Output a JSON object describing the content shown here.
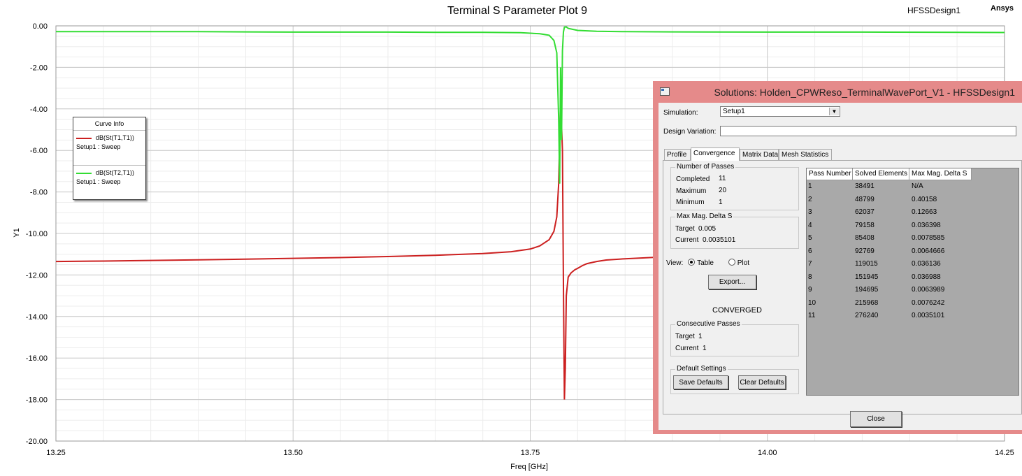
{
  "window": {
    "plot_title": "Terminal S Parameter Plot 9",
    "design_name": "HFSSDesign1",
    "brand": "Ansys"
  },
  "chart_data": {
    "type": "line",
    "title": "Terminal S Parameter Plot 9",
    "xlabel": "Freq [GHz]",
    "ylabel": "Y1",
    "xlim": [
      13.25,
      14.25
    ],
    "ylim": [
      -20,
      0
    ],
    "grid": true,
    "x_ticks": [
      "13.25",
      "13.50",
      "13.75",
      "14.00",
      "14.25"
    ],
    "x_tick_values": [
      13.25,
      13.5,
      13.75,
      14.0,
      14.25
    ],
    "y_ticks": [
      "0.00",
      "-2.00",
      "-4.00",
      "-6.00",
      "-8.00",
      "-10.00",
      "-12.00",
      "-14.00",
      "-16.00",
      "-18.00",
      "-20.00"
    ],
    "y_tick_values": [
      0,
      -2,
      -4,
      -6,
      -8,
      -10,
      -12,
      -14,
      -16,
      -18,
      -20
    ],
    "series": [
      {
        "name": "dB(St(T1,T1))",
        "legend_sub": "Setup1 : Sweep",
        "color": "#cc2020",
        "x": [
          13.25,
          13.3,
          13.35,
          13.4,
          13.45,
          13.5,
          13.55,
          13.6,
          13.65,
          13.7,
          13.73,
          13.75,
          13.76,
          13.77,
          13.775,
          13.778,
          13.78,
          13.782,
          13.784,
          13.785,
          13.786,
          13.787,
          13.788,
          13.79,
          13.793,
          13.797,
          13.8,
          13.805,
          13.81,
          13.82,
          13.83,
          13.85,
          13.88
        ],
        "y": [
          -11.35,
          -11.33,
          -11.3,
          -11.27,
          -11.24,
          -11.2,
          -11.16,
          -11.11,
          -11.05,
          -10.97,
          -10.88,
          -10.75,
          -10.6,
          -10.3,
          -9.9,
          -9.2,
          -7.6,
          -3.5,
          -6.0,
          -12.5,
          -18.0,
          -16.5,
          -13.0,
          -12.1,
          -11.9,
          -11.75,
          -11.68,
          -11.55,
          -11.45,
          -11.35,
          -11.28,
          -11.22,
          -11.15
        ]
      },
      {
        "name": "dB(St(T2,T1))",
        "legend_sub": "Setup1 : Sweep",
        "color": "#33dd33",
        "x": [
          13.25,
          13.3,
          13.35,
          13.4,
          13.45,
          13.5,
          13.55,
          13.6,
          13.65,
          13.7,
          13.74,
          13.76,
          13.77,
          13.775,
          13.778,
          13.78,
          13.781,
          13.782,
          13.783,
          13.784,
          13.785,
          13.786,
          13.788,
          13.79,
          13.8,
          13.82,
          13.85,
          13.9,
          14.0,
          14.1,
          14.2,
          14.25
        ],
        "y": [
          -0.28,
          -0.28,
          -0.28,
          -0.28,
          -0.29,
          -0.3,
          -0.3,
          -0.3,
          -0.31,
          -0.31,
          -0.33,
          -0.38,
          -0.45,
          -0.7,
          -1.3,
          -4.5,
          -7.6,
          -2.0,
          -5.5,
          -1.2,
          -0.3,
          -0.06,
          -0.05,
          -0.12,
          -0.22,
          -0.26,
          -0.28,
          -0.29,
          -0.3,
          -0.3,
          -0.31,
          -0.32
        ]
      }
    ]
  },
  "legend": {
    "title": "Curve Info",
    "entries": [
      {
        "name": "dB(St(T1,T1))",
        "sub": "Setup1 : Sweep",
        "color": "#cc2020"
      },
      {
        "name": "dB(St(T2,T1))",
        "sub": "Setup1 : Sweep",
        "color": "#33dd33"
      }
    ]
  },
  "dialog": {
    "title": "Solutions: Holden_CPWReso_TerminalWavePort_V1 - HFSSDesign1",
    "simulation_label": "Simulation:",
    "simulation_value": "Setup1",
    "design_variation_label": "Design Variation:",
    "design_variation_value": "",
    "tabs": [
      "Profile",
      "Convergence",
      "Matrix Data",
      "Mesh Statistics"
    ],
    "active_tab": "Convergence",
    "passes": {
      "group_title": "Number of Passes",
      "completed_label": "Completed",
      "completed": "11",
      "maximum_label": "Maximum",
      "maximum": "20",
      "minimum_label": "Minimum",
      "minimum": "1"
    },
    "delta": {
      "group_title": "Max Mag. Delta S",
      "target_label": "Target",
      "target": "0.005",
      "current_label": "Current",
      "current": "0.0035101"
    },
    "view": {
      "label": "View:",
      "table": "Table",
      "plot": "Plot",
      "selected": "Table"
    },
    "export_label": "Export...",
    "status": "CONVERGED",
    "consecutive": {
      "group_title": "Consecutive Passes",
      "target_label": "Target",
      "target": "1",
      "current_label": "Current",
      "current": "1"
    },
    "defaults": {
      "group_title": "Default Settings",
      "save_label": "Save Defaults",
      "clear_label": "Clear Defaults"
    },
    "table": {
      "headers": [
        "Pass Number",
        "Solved Elements",
        "Max Mag. Delta S"
      ],
      "rows": [
        [
          "1",
          "38491",
          "N/A"
        ],
        [
          "2",
          "48799",
          "0.40158"
        ],
        [
          "3",
          "62037",
          "0.12663"
        ],
        [
          "4",
          "79158",
          "0.036398"
        ],
        [
          "5",
          "85408",
          "0.0078585"
        ],
        [
          "6",
          "92769",
          "0.0064666"
        ],
        [
          "7",
          "119015",
          "0.036136"
        ],
        [
          "8",
          "151945",
          "0.036988"
        ],
        [
          "9",
          "194695",
          "0.0063989"
        ],
        [
          "10",
          "215968",
          "0.0076242"
        ],
        [
          "11",
          "276240",
          "0.0035101"
        ]
      ]
    },
    "close_label": "Close"
  }
}
